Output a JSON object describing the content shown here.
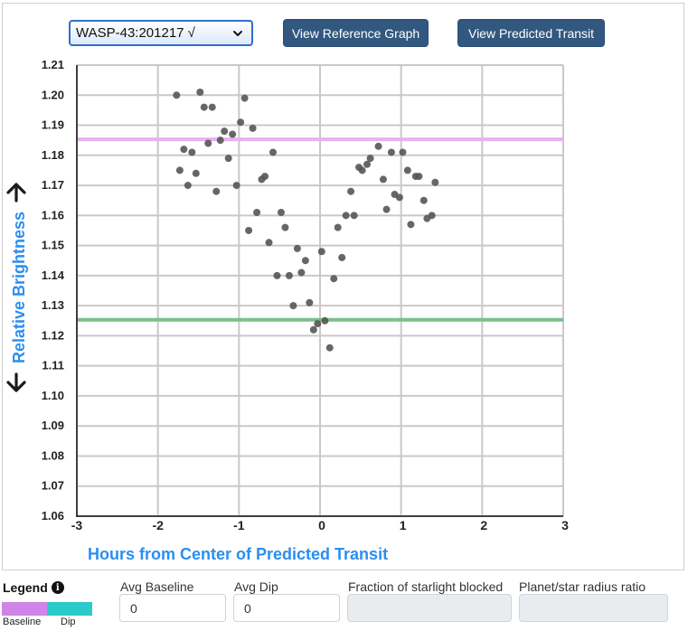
{
  "toolbar": {
    "dataset_select": {
      "value": "WASP-43:201217 √",
      "icon": "chevron-down-icon"
    },
    "reference_button": "View Reference Graph",
    "predicted_button": "View Predicted Transit"
  },
  "legend": {
    "title": "Legend",
    "info_icon": "info-circle-icon",
    "info_glyph": "i",
    "items": [
      {
        "label": "Baseline",
        "color": "#d084e8"
      },
      {
        "label": "Dip",
        "color": "#2ccaca"
      }
    ]
  },
  "fields": [
    {
      "label": "Avg Baseline",
      "value": "0",
      "disabled": false
    },
    {
      "label": "Avg Dip",
      "value": "0",
      "disabled": false
    },
    {
      "label": "Fraction of starlight blocked",
      "value": "",
      "disabled": true
    },
    {
      "label": "Planet/star radius ratio",
      "value": "",
      "disabled": true
    }
  ],
  "colors": {
    "button_bg": "#33587f",
    "axis_label": "#2b8ef0",
    "baseline_line": "#e4b3ef",
    "dip_line": "#7dbf87",
    "point": "#555555",
    "grid": "#cdc8c8"
  },
  "chart_data": {
    "type": "scatter",
    "title": "",
    "xlabel": "Hours from Center of Predicted Transit",
    "ylabel": "Relative Brightness",
    "ylabel_arrows": [
      "up-arrow-icon",
      "down-arrow-icon"
    ],
    "xlim": [
      -3,
      3
    ],
    "ylim": [
      1.06,
      1.21
    ],
    "x_ticks": [
      "-3",
      "-2",
      "-1",
      "0",
      "1",
      "2",
      "3"
    ],
    "y_ticks": [
      "1.21",
      "1.20",
      "1.19",
      "1.18",
      "1.17",
      "1.16",
      "1.15",
      "1.14",
      "1.13",
      "1.12",
      "1.11",
      "1.10",
      "1.09",
      "1.08",
      "1.07",
      "1.06"
    ],
    "grid": true,
    "horizontal_lines": [
      {
        "name": "Baseline",
        "y": 1.1853,
        "color": "#e4b3ef"
      },
      {
        "name": "Dip",
        "y": 1.1253,
        "color": "#7dbf87"
      }
    ],
    "points": [
      [
        -1.77,
        1.2
      ],
      [
        -1.48,
        1.201
      ],
      [
        -0.93,
        1.199
      ],
      [
        -1.43,
        1.196
      ],
      [
        -1.33,
        1.196
      ],
      [
        -0.98,
        1.191
      ],
      [
        -0.83,
        1.189
      ],
      [
        -1.18,
        1.188
      ],
      [
        -1.08,
        1.187
      ],
      [
        -1.23,
        1.185
      ],
      [
        -1.38,
        1.184
      ],
      [
        -1.68,
        1.182
      ],
      [
        -1.58,
        1.181
      ],
      [
        -1.13,
        1.179
      ],
      [
        -0.58,
        1.181
      ],
      [
        -1.73,
        1.175
      ],
      [
        -1.53,
        1.174
      ],
      [
        -0.72,
        1.172
      ],
      [
        -0.68,
        1.173
      ],
      [
        -1.63,
        1.17
      ],
      [
        -1.28,
        1.168
      ],
      [
        -1.03,
        1.17
      ],
      [
        -0.78,
        1.161
      ],
      [
        -0.48,
        1.161
      ],
      [
        -0.88,
        1.155
      ],
      [
        -0.43,
        1.156
      ],
      [
        -0.63,
        1.151
      ],
      [
        -0.28,
        1.149
      ],
      [
        0.02,
        1.148
      ],
      [
        -0.18,
        1.145
      ],
      [
        -0.23,
        1.141
      ],
      [
        -0.53,
        1.14
      ],
      [
        -0.38,
        1.14
      ],
      [
        -0.33,
        1.13
      ],
      [
        -0.13,
        1.131
      ],
      [
        -0.08,
        1.122
      ],
      [
        -0.03,
        1.124
      ],
      [
        0.06,
        1.125
      ],
      [
        0.12,
        1.116
      ],
      [
        0.17,
        1.139
      ],
      [
        0.27,
        1.146
      ],
      [
        0.22,
        1.156
      ],
      [
        0.32,
        1.16
      ],
      [
        0.42,
        1.16
      ],
      [
        0.38,
        1.168
      ],
      [
        0.48,
        1.176
      ],
      [
        0.52,
        1.175
      ],
      [
        0.58,
        1.177
      ],
      [
        0.62,
        1.179
      ],
      [
        0.72,
        1.183
      ],
      [
        0.88,
        1.181
      ],
      [
        1.02,
        1.181
      ],
      [
        0.78,
        1.172
      ],
      [
        1.08,
        1.175
      ],
      [
        1.18,
        1.173
      ],
      [
        1.22,
        1.173
      ],
      [
        1.42,
        1.171
      ],
      [
        0.92,
        1.167
      ],
      [
        0.98,
        1.166
      ],
      [
        1.28,
        1.165
      ],
      [
        0.82,
        1.162
      ],
      [
        1.12,
        1.157
      ],
      [
        1.32,
        1.159
      ],
      [
        1.38,
        1.16
      ]
    ]
  }
}
